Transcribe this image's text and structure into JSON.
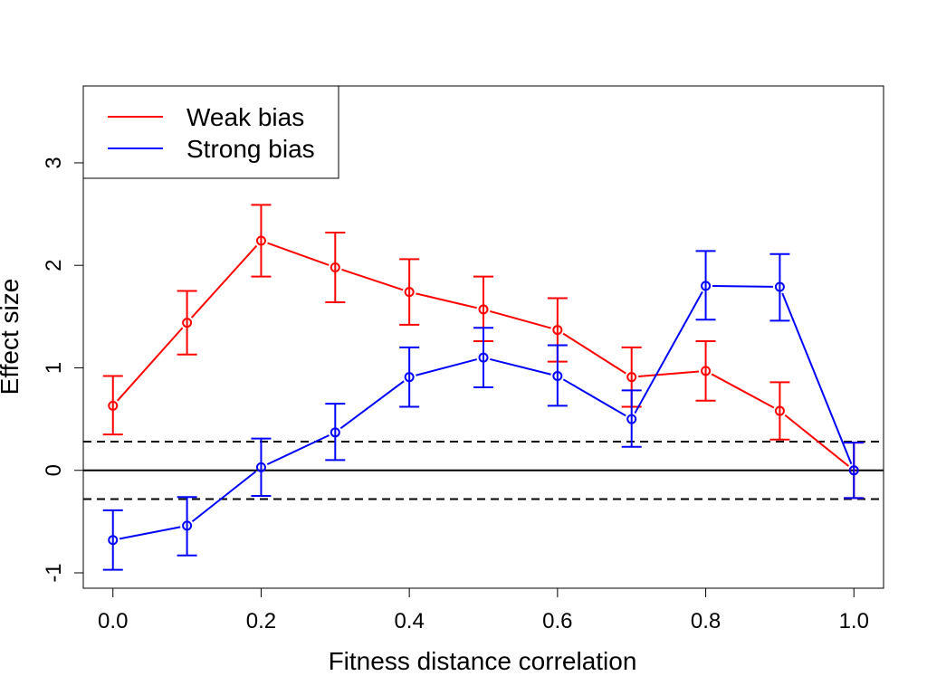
{
  "chart_data": {
    "type": "line",
    "xlabel": "Fitness distance correlation",
    "ylabel": "Effect size",
    "xlim": [
      -0.04,
      1.04
    ],
    "ylim": [
      -1.15,
      3.75
    ],
    "x_ticks": [
      0.0,
      0.2,
      0.4,
      0.6,
      0.8,
      1.0
    ],
    "x_tick_labels": [
      "0.0",
      "0.2",
      "0.4",
      "0.6",
      "0.8",
      "1.0"
    ],
    "y_ticks": [
      -1,
      0,
      1,
      2,
      3
    ],
    "y_tick_labels": [
      "-1",
      "0",
      "1",
      "2",
      "3"
    ],
    "x": [
      0.0,
      0.1,
      0.2,
      0.3,
      0.4,
      0.5,
      0.6,
      0.7,
      0.8,
      0.9,
      1.0
    ],
    "series": [
      {
        "name": "Weak bias",
        "color": "#ff0000",
        "values": [
          0.63,
          1.44,
          2.24,
          1.98,
          1.74,
          1.57,
          1.37,
          0.91,
          0.97,
          0.58,
          0.0
        ],
        "lower": [
          0.35,
          1.13,
          1.89,
          1.64,
          1.42,
          1.26,
          1.06,
          0.62,
          0.68,
          0.3,
          -0.27
        ],
        "upper": [
          0.92,
          1.75,
          2.59,
          2.32,
          2.06,
          1.89,
          1.68,
          1.2,
          1.26,
          0.86,
          0.27
        ]
      },
      {
        "name": "Strong bias",
        "color": "#0000ff",
        "values": [
          -0.68,
          -0.54,
          0.03,
          0.37,
          0.91,
          1.1,
          0.92,
          0.5,
          1.8,
          1.79,
          0.0
        ],
        "lower": [
          -0.97,
          -0.83,
          -0.25,
          0.1,
          0.62,
          0.81,
          0.63,
          0.23,
          1.47,
          1.46,
          -0.27
        ],
        "upper": [
          -0.39,
          -0.26,
          0.31,
          0.65,
          1.2,
          1.39,
          1.22,
          0.78,
          2.14,
          2.11,
          0.27
        ]
      }
    ],
    "reference_lines": [
      {
        "y": 0,
        "style": "solid",
        "color": "#000000"
      },
      {
        "y": 0.28,
        "style": "dashed",
        "color": "#000000"
      },
      {
        "y": -0.28,
        "style": "dashed",
        "color": "#000000"
      }
    ],
    "legend": {
      "placement": "top-left",
      "entries": [
        "Weak bias",
        "Strong bias"
      ]
    },
    "grid": false
  }
}
